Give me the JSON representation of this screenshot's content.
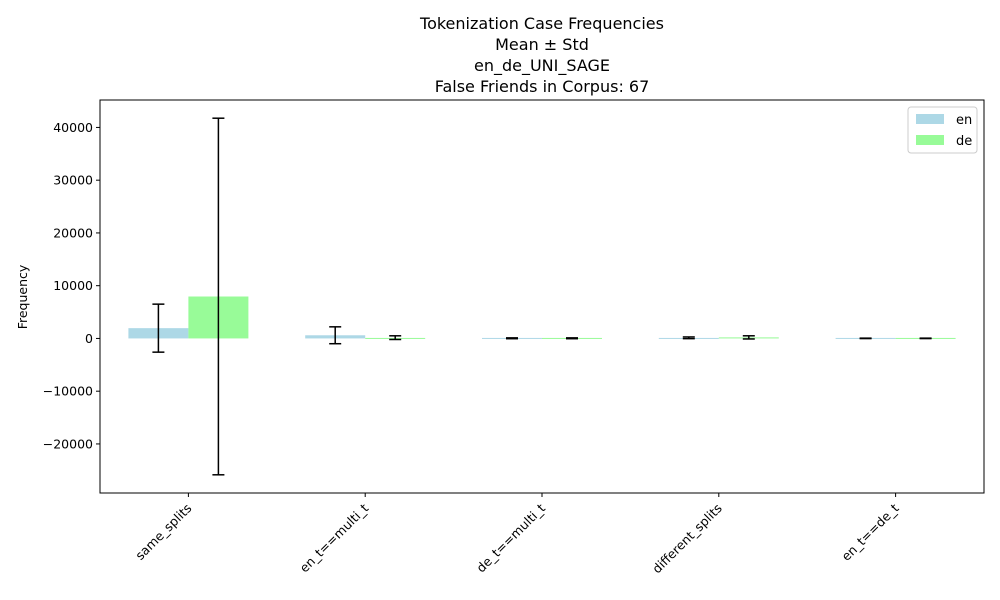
{
  "chart_data": {
    "type": "bar",
    "title_lines": [
      "Tokenization Case Frequencies",
      "Mean ± Std",
      "en_de_UNI_SAGE",
      "False Friends in Corpus: 67"
    ],
    "xlabel": "",
    "ylabel": "Frequency",
    "categories": [
      "same_splits",
      "en_t==multi_t",
      "de_t==multi_t",
      "different_splits",
      "en_t==de_t"
    ],
    "ylim": [
      -29300,
      45200
    ],
    "yticks": [
      -20000,
      -10000,
      0,
      10000,
      20000,
      30000,
      40000
    ],
    "ytick_labels": [
      "−20000",
      "−10000",
      "0",
      "10000",
      "20000",
      "30000",
      "40000"
    ],
    "series": [
      {
        "name": "en",
        "color": "#add8e6",
        "values": [
          1950,
          600,
          30,
          120,
          15
        ],
        "std": [
          4550,
          1600,
          80,
          160,
          40
        ]
      },
      {
        "name": "de",
        "color": "#98fb98",
        "values": [
          7950,
          150,
          30,
          200,
          15
        ],
        "std": [
          33800,
          350,
          80,
          300,
          40
        ]
      }
    ],
    "legend": {
      "position": "top-right",
      "entries": [
        "en",
        "de"
      ]
    },
    "grid": false
  }
}
